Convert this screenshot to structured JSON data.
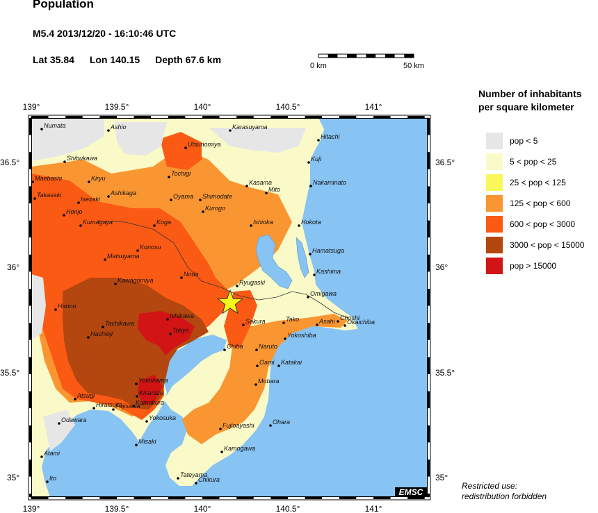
{
  "header": {
    "title": "Population",
    "event": "M5.4  2013/12/20 - 16:10:46 UTC",
    "lat": "Lat 35.84",
    "lon": "Lon 140.15",
    "depth": "Depth  67.6 km"
  },
  "scale_bar": {
    "start_label": "0 km",
    "end_label": "50 km"
  },
  "legend": {
    "title_line1": "Number of inhabitants",
    "title_line2": "per square kilometer",
    "items": [
      {
        "label": "pop < 5",
        "color": "#e6e6e6"
      },
      {
        "label": "5 < pop < 25",
        "color": "#fafac8"
      },
      {
        "label": "25 < pop < 125",
        "color": "#f8f85a"
      },
      {
        "label": "125 < pop < 600",
        "color": "#fa9632"
      },
      {
        "label": "600 < pop < 3000",
        "color": "#fa5a14"
      },
      {
        "label": "3000 < pop < 15000",
        "color": "#b4460f"
      },
      {
        "label": "pop > 15000",
        "color": "#d21414"
      }
    ]
  },
  "map": {
    "lon_ticks": [
      "139°",
      "139.5°",
      "140°",
      "140.5°",
      "141°"
    ],
    "lat_ticks": [
      "36.5°",
      "36°",
      "35.5°",
      "35°"
    ],
    "sea_color": "#87c3f3",
    "epicenter_color": "#f5f518",
    "badge": "EMSC",
    "cities": [
      {
        "name": "Numata"
      },
      {
        "name": "Ashio"
      },
      {
        "name": "Karasuyama"
      },
      {
        "name": "Hitachi"
      },
      {
        "name": "Utsunomiya"
      },
      {
        "name": "Shibukawa"
      },
      {
        "name": "Kuji"
      },
      {
        "name": "Tochigi"
      },
      {
        "name": "Maebashi"
      },
      {
        "name": "Kiryu"
      },
      {
        "name": "Kasama"
      },
      {
        "name": "Mito"
      },
      {
        "name": "Nakaminato"
      },
      {
        "name": "Ashikaga"
      },
      {
        "name": "Oyama"
      },
      {
        "name": "Shimodate"
      },
      {
        "name": "Takasaki"
      },
      {
        "name": "Isezaki"
      },
      {
        "name": "Kurogo"
      },
      {
        "name": "Honjo"
      },
      {
        "name": "Kumagaya"
      },
      {
        "name": "Koga"
      },
      {
        "name": "Ishioka"
      },
      {
        "name": "Hokota"
      },
      {
        "name": "Konosu"
      },
      {
        "name": "Hamatsuga"
      },
      {
        "name": "Matsuyama"
      },
      {
        "name": "Kashima"
      },
      {
        "name": "Noda"
      },
      {
        "name": "Kawagomiya"
      },
      {
        "name": "Ryugaski"
      },
      {
        "name": "Omigawa"
      },
      {
        "name": "Hanno"
      },
      {
        "name": "Ichikawa"
      },
      {
        "name": "Tachikawa"
      },
      {
        "name": "Sakura"
      },
      {
        "name": "Tako"
      },
      {
        "name": "Asahi"
      },
      {
        "name": "Choshi"
      },
      {
        "name": "Okaichiba"
      },
      {
        "name": "Hachioji"
      },
      {
        "name": "Tokyo"
      },
      {
        "name": "Yokoshiba"
      },
      {
        "name": "Chiba"
      },
      {
        "name": "Naruto"
      },
      {
        "name": "Oami"
      },
      {
        "name": "Katakai"
      },
      {
        "name": "Yokohama"
      },
      {
        "name": "Mobara"
      },
      {
        "name": "Kisarazu"
      },
      {
        "name": "Atsugi"
      },
      {
        "name": "Kamakura"
      },
      {
        "name": "Hiratsuka"
      },
      {
        "name": "Fujisawa"
      },
      {
        "name": "Yokosuka"
      },
      {
        "name": "Ohara"
      },
      {
        "name": "Fujioayashi"
      },
      {
        "name": "Odawara"
      },
      {
        "name": "Misaki"
      },
      {
        "name": "Kamogawa"
      },
      {
        "name": "Atami"
      },
      {
        "name": "Ito"
      },
      {
        "name": "Tateyama"
      },
      {
        "name": "Chikura"
      }
    ]
  },
  "footer": {
    "line1": "Restricted use:",
    "line2": "redistribution forbidden"
  }
}
